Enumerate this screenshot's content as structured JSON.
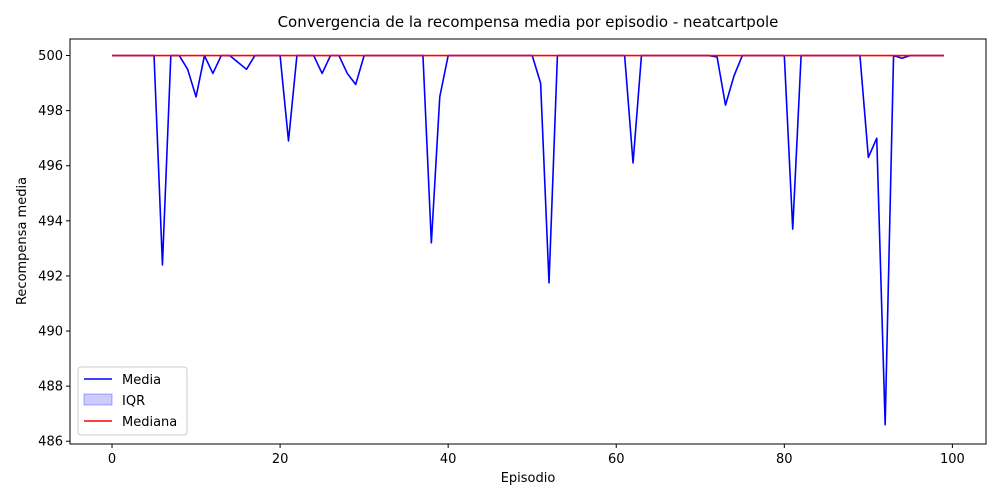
{
  "chart_data": {
    "type": "line",
    "title": "Convergencia de la recompensa media por episodio - neatcartpole",
    "xlabel": "Episodio",
    "ylabel": "Recompensa media",
    "xlim": [
      -5,
      104
    ],
    "ylim": [
      485.9,
      500.6
    ],
    "x_ticks": [
      0,
      20,
      40,
      60,
      80,
      100
    ],
    "y_ticks": [
      486,
      488,
      490,
      492,
      494,
      496,
      498,
      500
    ],
    "grid": false,
    "legend_position": "lower-left",
    "legend": [
      "Media",
      "IQR",
      "Mediana"
    ],
    "x": [
      0,
      1,
      2,
      3,
      4,
      5,
      6,
      7,
      8,
      9,
      10,
      11,
      12,
      13,
      14,
      15,
      16,
      17,
      18,
      19,
      20,
      21,
      22,
      23,
      24,
      25,
      26,
      27,
      28,
      29,
      30,
      31,
      32,
      33,
      34,
      35,
      36,
      37,
      38,
      39,
      40,
      41,
      42,
      43,
      44,
      45,
      46,
      47,
      48,
      49,
      50,
      51,
      52,
      53,
      54,
      55,
      56,
      57,
      58,
      59,
      60,
      61,
      62,
      63,
      64,
      65,
      66,
      67,
      68,
      69,
      70,
      71,
      72,
      73,
      74,
      75,
      76,
      77,
      78,
      79,
      80,
      81,
      82,
      83,
      84,
      85,
      86,
      87,
      88,
      89,
      90,
      91,
      92,
      93,
      94,
      95,
      96,
      97,
      98,
      99
    ],
    "series": [
      {
        "name": "Media",
        "color": "#0000ff",
        "values": [
          500,
          500,
          500,
          500,
          500,
          500,
          492.4,
          500,
          500,
          499.5,
          498.5,
          500,
          499.35,
          500,
          500,
          499.75,
          499.5,
          500,
          500,
          500,
          500,
          496.9,
          500,
          500,
          500,
          499.35,
          500,
          500,
          499.35,
          498.95,
          500,
          500,
          500,
          500,
          500,
          500,
          500,
          500,
          493.2,
          498.5,
          500,
          500,
          500,
          500,
          500,
          500,
          500,
          500,
          500,
          500,
          500,
          499,
          491.75,
          500,
          500,
          500,
          500,
          500,
          500,
          500,
          500,
          500,
          496.1,
          500,
          500,
          500,
          500,
          500,
          500,
          500,
          500,
          500,
          499.95,
          498.2,
          499.25,
          500,
          500,
          500,
          500,
          500,
          500,
          493.7,
          500,
          500,
          500,
          500,
          500,
          500,
          500,
          500,
          496.3,
          497,
          486.6,
          500,
          499.9,
          500,
          500,
          500,
          500,
          500
        ]
      },
      {
        "name": "IQR",
        "color": "#0000ff",
        "lower": 500,
        "upper": 500
      },
      {
        "name": "Mediana",
        "color": "#ff0000",
        "values": [
          500,
          500,
          500,
          500,
          500,
          500,
          500,
          500,
          500,
          500,
          500,
          500,
          500,
          500,
          500,
          500,
          500,
          500,
          500,
          500,
          500,
          500,
          500,
          500,
          500,
          500,
          500,
          500,
          500,
          500,
          500,
          500,
          500,
          500,
          500,
          500,
          500,
          500,
          500,
          500,
          500,
          500,
          500,
          500,
          500,
          500,
          500,
          500,
          500,
          500,
          500,
          500,
          500,
          500,
          500,
          500,
          500,
          500,
          500,
          500,
          500,
          500,
          500,
          500,
          500,
          500,
          500,
          500,
          500,
          500,
          500,
          500,
          500,
          500,
          500,
          500,
          500,
          500,
          500,
          500,
          500,
          500,
          500,
          500,
          500,
          500,
          500,
          500,
          500,
          500,
          500,
          500,
          500,
          500,
          500,
          500,
          500,
          500,
          500,
          500
        ]
      }
    ]
  }
}
